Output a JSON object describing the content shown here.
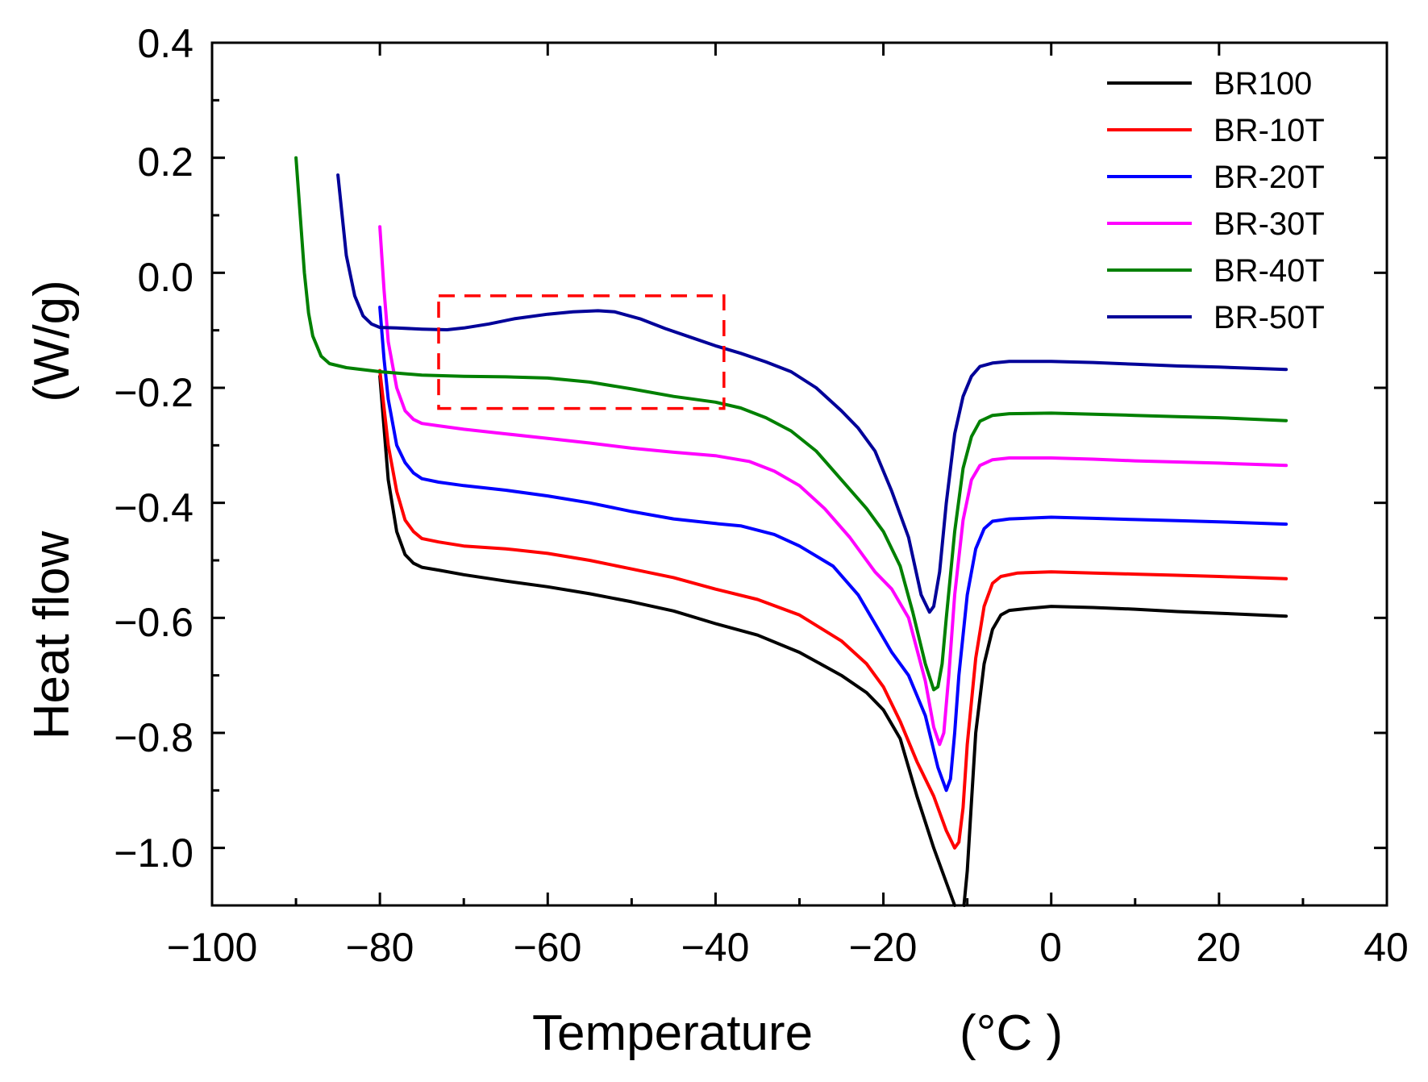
{
  "chart_data": {
    "type": "line",
    "title": "",
    "xlabel": "Temperature",
    "xunit": "(°C )",
    "ylabel": "Heat flow",
    "yunit": "(W/g)",
    "xlim": [
      -100,
      40
    ],
    "ylim": [
      -1.1,
      0.4
    ],
    "xticks": [
      -100,
      -80,
      -60,
      -40,
      -20,
      0,
      20,
      40
    ],
    "xtick_labels": [
      "−100",
      "−80",
      "−60",
      "−40",
      "−20",
      "0",
      "20",
      "40"
    ],
    "yticks": [
      0.4,
      0.2,
      0.0,
      -0.2,
      -0.4,
      -0.6,
      -0.8,
      -1.0
    ],
    "ytick_labels": [
      "0.4",
      "0.2",
      "0.0",
      "−0.2",
      "−0.4",
      "−0.6",
      "−0.8",
      "−1.0"
    ],
    "legend_position": "top-right",
    "highlight_box": {
      "x": [
        -73,
        -39
      ],
      "y": [
        -0.04,
        -0.236
      ],
      "color": "#ff0000",
      "style": "dashed"
    },
    "series": [
      {
        "name": "BR100",
        "color": "#000000",
        "points": [
          [
            -80,
            -0.18
          ],
          [
            -79,
            -0.36
          ],
          [
            -78,
            -0.45
          ],
          [
            -77,
            -0.49
          ],
          [
            -76,
            -0.505
          ],
          [
            -75,
            -0.512
          ],
          [
            -73,
            -0.517
          ],
          [
            -70,
            -0.525
          ],
          [
            -65,
            -0.536
          ],
          [
            -60,
            -0.546
          ],
          [
            -55,
            -0.558
          ],
          [
            -50,
            -0.572
          ],
          [
            -45,
            -0.588
          ],
          [
            -40,
            -0.61
          ],
          [
            -35,
            -0.63
          ],
          [
            -30,
            -0.66
          ],
          [
            -25,
            -0.7
          ],
          [
            -22,
            -0.73
          ],
          [
            -20,
            -0.76
          ],
          [
            -18,
            -0.81
          ],
          [
            -16,
            -0.91
          ],
          [
            -14,
            -1.0
          ],
          [
            -12.5,
            -1.06
          ],
          [
            -11.5,
            -1.1
          ]
        ],
        "points2": [
          [
            -10.4,
            -1.1
          ],
          [
            -10,
            -1.04
          ],
          [
            -9.5,
            -0.92
          ],
          [
            -9,
            -0.8
          ],
          [
            -8,
            -0.68
          ],
          [
            -7,
            -0.62
          ],
          [
            -6,
            -0.595
          ],
          [
            -5,
            -0.587
          ],
          [
            -3,
            -0.584
          ],
          [
            0,
            -0.58
          ],
          [
            5,
            -0.582
          ],
          [
            10,
            -0.585
          ],
          [
            15,
            -0.589
          ],
          [
            20,
            -0.592
          ],
          [
            28,
            -0.597
          ]
        ]
      },
      {
        "name": "BR-10T",
        "color": "#ff0000",
        "points": [
          [
            -80,
            -0.17
          ],
          [
            -79,
            -0.3
          ],
          [
            -78,
            -0.38
          ],
          [
            -77,
            -0.43
          ],
          [
            -76,
            -0.45
          ],
          [
            -75,
            -0.462
          ],
          [
            -73,
            -0.468
          ],
          [
            -70,
            -0.475
          ],
          [
            -65,
            -0.48
          ],
          [
            -60,
            -0.488
          ],
          [
            -55,
            -0.5
          ],
          [
            -50,
            -0.515
          ],
          [
            -45,
            -0.53
          ],
          [
            -40,
            -0.55
          ],
          [
            -35,
            -0.568
          ],
          [
            -30,
            -0.595
          ],
          [
            -25,
            -0.64
          ],
          [
            -22,
            -0.68
          ],
          [
            -20,
            -0.72
          ],
          [
            -18,
            -0.78
          ],
          [
            -16,
            -0.85
          ],
          [
            -14,
            -0.91
          ],
          [
            -12.5,
            -0.97
          ],
          [
            -11.5,
            -1.0
          ],
          [
            -11,
            -0.99
          ],
          [
            -10.5,
            -0.93
          ],
          [
            -10,
            -0.82
          ],
          [
            -9,
            -0.67
          ],
          [
            -8,
            -0.58
          ],
          [
            -7,
            -0.54
          ],
          [
            -6,
            -0.528
          ],
          [
            -4,
            -0.522
          ],
          [
            0,
            -0.52
          ],
          [
            5,
            -0.522
          ],
          [
            10,
            -0.524
          ],
          [
            15,
            -0.526
          ],
          [
            20,
            -0.528
          ],
          [
            28,
            -0.532
          ]
        ]
      },
      {
        "name": "BR-20T",
        "color": "#0000ff",
        "points": [
          [
            -80,
            -0.06
          ],
          [
            -79.5,
            -0.15
          ],
          [
            -79,
            -0.22
          ],
          [
            -78,
            -0.3
          ],
          [
            -77,
            -0.33
          ],
          [
            -76,
            -0.348
          ],
          [
            -75,
            -0.358
          ],
          [
            -73,
            -0.364
          ],
          [
            -70,
            -0.37
          ],
          [
            -65,
            -0.378
          ],
          [
            -60,
            -0.388
          ],
          [
            -55,
            -0.4
          ],
          [
            -50,
            -0.415
          ],
          [
            -45,
            -0.428
          ],
          [
            -40,
            -0.436
          ],
          [
            -37,
            -0.44
          ],
          [
            -33,
            -0.455
          ],
          [
            -30,
            -0.475
          ],
          [
            -26,
            -0.51
          ],
          [
            -23,
            -0.56
          ],
          [
            -21,
            -0.61
          ],
          [
            -19,
            -0.66
          ],
          [
            -17,
            -0.7
          ],
          [
            -15,
            -0.77
          ],
          [
            -13.5,
            -0.86
          ],
          [
            -12.5,
            -0.9
          ],
          [
            -12,
            -0.88
          ],
          [
            -11.5,
            -0.8
          ],
          [
            -11,
            -0.7
          ],
          [
            -10,
            -0.56
          ],
          [
            -9,
            -0.48
          ],
          [
            -8,
            -0.445
          ],
          [
            -7,
            -0.432
          ],
          [
            -5,
            -0.428
          ],
          [
            0,
            -0.425
          ],
          [
            5,
            -0.427
          ],
          [
            10,
            -0.429
          ],
          [
            15,
            -0.431
          ],
          [
            20,
            -0.433
          ],
          [
            28,
            -0.437
          ]
        ]
      },
      {
        "name": "BR-30T",
        "color": "#ff00ff",
        "points": [
          [
            -80,
            0.08
          ],
          [
            -79.5,
            -0.03
          ],
          [
            -79,
            -0.12
          ],
          [
            -78,
            -0.2
          ],
          [
            -77,
            -0.24
          ],
          [
            -76,
            -0.255
          ],
          [
            -75,
            -0.262
          ],
          [
            -73,
            -0.266
          ],
          [
            -70,
            -0.272
          ],
          [
            -65,
            -0.28
          ],
          [
            -60,
            -0.288
          ],
          [
            -55,
            -0.296
          ],
          [
            -50,
            -0.305
          ],
          [
            -45,
            -0.312
          ],
          [
            -40,
            -0.318
          ],
          [
            -36,
            -0.328
          ],
          [
            -33,
            -0.345
          ],
          [
            -30,
            -0.37
          ],
          [
            -27,
            -0.41
          ],
          [
            -24,
            -0.46
          ],
          [
            -21,
            -0.52
          ],
          [
            -19,
            -0.55
          ],
          [
            -17,
            -0.6
          ],
          [
            -15,
            -0.71
          ],
          [
            -14,
            -0.79
          ],
          [
            -13.3,
            -0.82
          ],
          [
            -12.8,
            -0.8
          ],
          [
            -12.2,
            -0.7
          ],
          [
            -11.5,
            -0.56
          ],
          [
            -10.5,
            -0.43
          ],
          [
            -9.5,
            -0.36
          ],
          [
            -8.5,
            -0.335
          ],
          [
            -7,
            -0.325
          ],
          [
            -5,
            -0.322
          ],
          [
            0,
            -0.322
          ],
          [
            5,
            -0.324
          ],
          [
            10,
            -0.327
          ],
          [
            15,
            -0.329
          ],
          [
            20,
            -0.331
          ],
          [
            28,
            -0.335
          ]
        ]
      },
      {
        "name": "BR-40T",
        "color": "#008000",
        "points": [
          [
            -90,
            0.2
          ],
          [
            -89.5,
            0.1
          ],
          [
            -89,
            0.0
          ],
          [
            -88.5,
            -0.07
          ],
          [
            -88,
            -0.11
          ],
          [
            -87,
            -0.145
          ],
          [
            -86,
            -0.158
          ],
          [
            -84,
            -0.165
          ],
          [
            -80,
            -0.172
          ],
          [
            -75,
            -0.178
          ],
          [
            -70,
            -0.18
          ],
          [
            -65,
            -0.181
          ],
          [
            -60,
            -0.183
          ],
          [
            -55,
            -0.19
          ],
          [
            -50,
            -0.202
          ],
          [
            -45,
            -0.215
          ],
          [
            -40,
            -0.225
          ],
          [
            -37,
            -0.235
          ],
          [
            -34,
            -0.252
          ],
          [
            -31,
            -0.275
          ],
          [
            -28,
            -0.31
          ],
          [
            -25,
            -0.36
          ],
          [
            -22,
            -0.41
          ],
          [
            -20,
            -0.45
          ],
          [
            -18,
            -0.51
          ],
          [
            -16.5,
            -0.59
          ],
          [
            -15,
            -0.68
          ],
          [
            -14,
            -0.725
          ],
          [
            -13.5,
            -0.72
          ],
          [
            -13,
            -0.68
          ],
          [
            -12.5,
            -0.6
          ],
          [
            -11.5,
            -0.45
          ],
          [
            -10.5,
            -0.34
          ],
          [
            -9.5,
            -0.285
          ],
          [
            -8.5,
            -0.258
          ],
          [
            -7,
            -0.248
          ],
          [
            -5,
            -0.245
          ],
          [
            0,
            -0.244
          ],
          [
            5,
            -0.246
          ],
          [
            10,
            -0.248
          ],
          [
            15,
            -0.25
          ],
          [
            20,
            -0.252
          ],
          [
            28,
            -0.257
          ]
        ]
      },
      {
        "name": "BR-50T",
        "color": "#000099",
        "points": [
          [
            -85,
            0.17
          ],
          [
            -84.5,
            0.1
          ],
          [
            -84,
            0.03
          ],
          [
            -83,
            -0.04
          ],
          [
            -82,
            -0.075
          ],
          [
            -81,
            -0.089
          ],
          [
            -80,
            -0.095
          ],
          [
            -78,
            -0.096
          ],
          [
            -75,
            -0.098
          ],
          [
            -72,
            -0.099
          ],
          [
            -70,
            -0.096
          ],
          [
            -67,
            -0.089
          ],
          [
            -64,
            -0.08
          ],
          [
            -60,
            -0.072
          ],
          [
            -57,
            -0.068
          ],
          [
            -54,
            -0.066
          ],
          [
            -52,
            -0.068
          ],
          [
            -49,
            -0.08
          ],
          [
            -46,
            -0.097
          ],
          [
            -43,
            -0.112
          ],
          [
            -40,
            -0.127
          ],
          [
            -37,
            -0.14
          ],
          [
            -34,
            -0.155
          ],
          [
            -31,
            -0.172
          ],
          [
            -28,
            -0.2
          ],
          [
            -25,
            -0.24
          ],
          [
            -23,
            -0.27
          ],
          [
            -21,
            -0.31
          ],
          [
            -19,
            -0.38
          ],
          [
            -17,
            -0.46
          ],
          [
            -15.5,
            -0.56
          ],
          [
            -14.5,
            -0.59
          ],
          [
            -14,
            -0.58
          ],
          [
            -13.3,
            -0.52
          ],
          [
            -12.5,
            -0.4
          ],
          [
            -11.5,
            -0.28
          ],
          [
            -10.5,
            -0.215
          ],
          [
            -9.5,
            -0.18
          ],
          [
            -8.5,
            -0.163
          ],
          [
            -7,
            -0.157
          ],
          [
            -5,
            -0.154
          ],
          [
            0,
            -0.154
          ],
          [
            5,
            -0.156
          ],
          [
            10,
            -0.159
          ],
          [
            15,
            -0.162
          ],
          [
            20,
            -0.164
          ],
          [
            28,
            -0.168
          ]
        ]
      }
    ]
  }
}
